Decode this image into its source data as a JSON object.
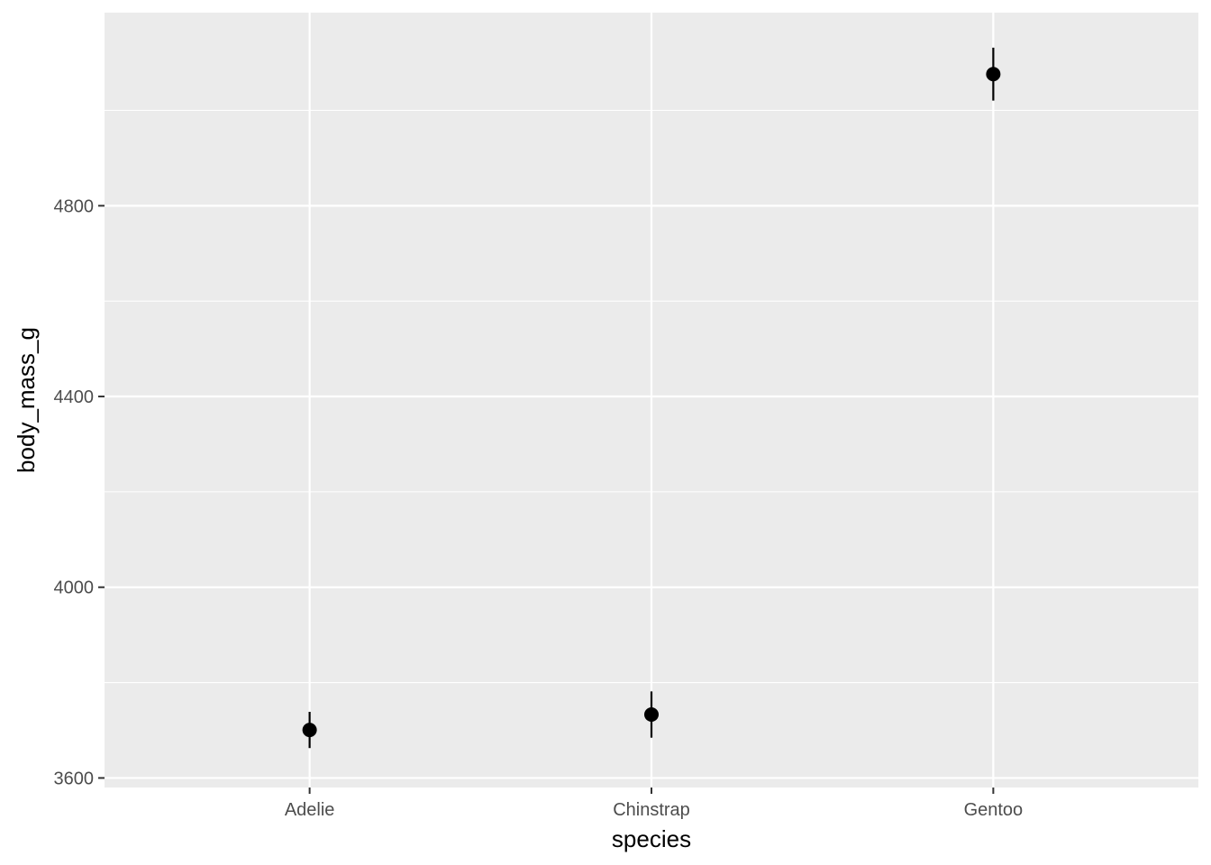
{
  "chart_data": {
    "type": "pointrange",
    "xlabel": "species",
    "ylabel": "body_mass_g",
    "categories": [
      "Adelie",
      "Chinstrap",
      "Gentoo"
    ],
    "y": [
      3700.7,
      3733.1,
      5076.0
    ],
    "ymin": [
      3662.7,
      3684.5,
      5020.5
    ],
    "ymax": [
      3738.7,
      3781.5,
      5131.5
    ],
    "ylim": [
      3580,
      5205
    ],
    "y_ticks": [
      3600,
      4000,
      4400,
      4800
    ],
    "y_tick_labels": [
      "3600",
      "4000",
      "4400",
      "4800"
    ],
    "y_minor_ticks": [
      3800,
      4200,
      4600,
      5000
    ],
    "grid": true,
    "legend": "none",
    "colors": {
      "panel": "#ebebeb",
      "grid": "#ffffff",
      "point": "#000000",
      "tick_text": "#4d4d4d",
      "axis_title": "#000000"
    }
  }
}
